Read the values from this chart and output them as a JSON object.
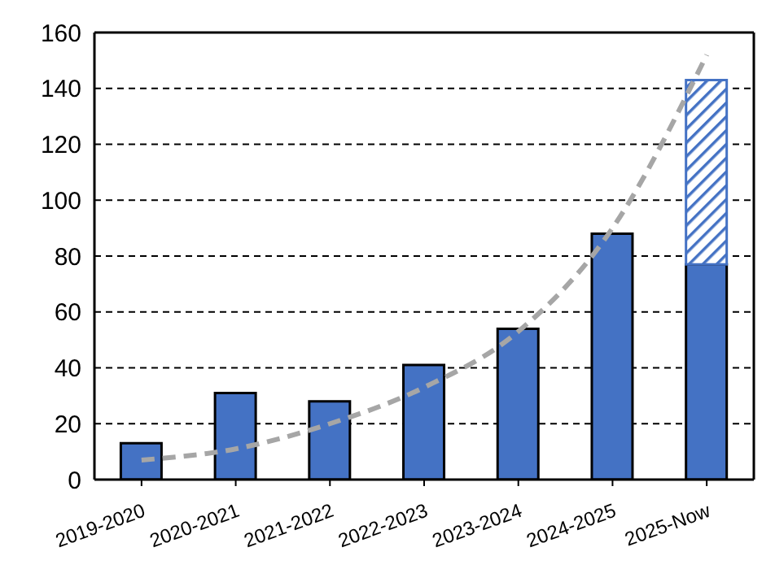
{
  "chart_data": {
    "type": "bar",
    "categories": [
      "2019-2020",
      "2020-2021",
      "2021-2022",
      "2022-2023",
      "2023-2024",
      "2024-2025",
      "2025-Now"
    ],
    "stacked": true,
    "series": [
      {
        "color": "#4472c4",
        "values": [
          13,
          31,
          28,
          41,
          54,
          88,
          77
        ]
      },
      {
        "color": "#4472c4",
        "values": [
          null,
          null,
          null,
          null,
          null,
          null,
          66
        ]
      },
      {
        "type": "line",
        "color": "#a6a6a6",
        "line_style": "dashed",
        "values": [
          7,
          11,
          20,
          33,
          53,
          90,
          152
        ]
      }
    ],
    "ylim": [
      0,
      160
    ],
    "yticks": [
      0,
      20,
      40,
      60,
      80,
      100,
      120,
      140,
      160
    ],
    "grid": "y",
    "legend": false,
    "marker": "none"
  }
}
